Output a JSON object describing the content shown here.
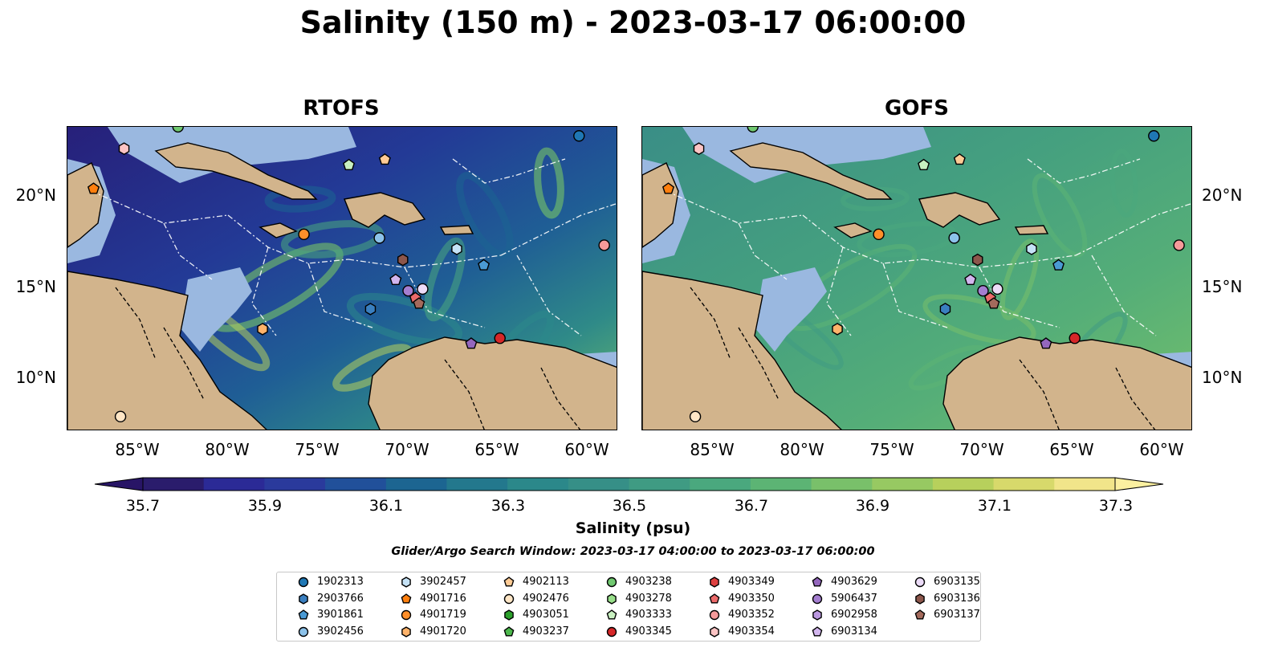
{
  "title": "Salinity (150 m) - 2023-03-17 06:00:00",
  "panels": [
    {
      "title": "RTOFS"
    },
    {
      "title": "GOFS"
    }
  ],
  "axes": {
    "lat_labels": [
      "20°N",
      "15°N",
      "10°N"
    ],
    "lon_labels": [
      "85°W",
      "80°W",
      "75°W",
      "70°W",
      "65°W",
      "60°W"
    ]
  },
  "colorbar": {
    "label": "Salinity (psu)",
    "ticks": [
      "35.7",
      "35.9",
      "36.1",
      "36.3",
      "36.5",
      "36.7",
      "36.9",
      "37.1",
      "37.3"
    ],
    "colors": [
      "#2a1c6c",
      "#2b2a96",
      "#2a3a9c",
      "#21509a",
      "#1c6591",
      "#23788d",
      "#2b888a",
      "#368f87",
      "#3f9b83",
      "#4aa87e",
      "#5cb474",
      "#79c06a",
      "#97c962",
      "#b7d05c",
      "#d7d96b",
      "#f1e58a"
    ]
  },
  "search_window": "Glider/Argo Search Window: 2023-03-17 04:00:00 to 2023-03-17 06:00:00",
  "legend": [
    {
      "id": "1902313",
      "marker": "circle",
      "color": "#1f77b4"
    },
    {
      "id": "2903766",
      "marker": "hexagon",
      "color": "#3a7fc0"
    },
    {
      "id": "3901861",
      "marker": "pentagon",
      "color": "#4a9ad4"
    },
    {
      "id": "3902456",
      "marker": "circle",
      "color": "#8cc2ea"
    },
    {
      "id": "3902457",
      "marker": "hexagon",
      "color": "#c5e2f6"
    },
    {
      "id": "4901716",
      "marker": "pentagon",
      "color": "#ff7f0e"
    },
    {
      "id": "4901719",
      "marker": "circle",
      "color": "#ff8f2a"
    },
    {
      "id": "4901720",
      "marker": "hexagon",
      "color": "#ffb36a"
    },
    {
      "id": "4902113",
      "marker": "pentagon",
      "color": "#ffcb95"
    },
    {
      "id": "4902476",
      "marker": "circle",
      "color": "#ffe6c6"
    },
    {
      "id": "4903051",
      "marker": "hexagon",
      "color": "#2ca02c"
    },
    {
      "id": "4903237",
      "marker": "pentagon",
      "color": "#4cb84c"
    },
    {
      "id": "4903238",
      "marker": "circle",
      "color": "#70c870"
    },
    {
      "id": "4903278",
      "marker": "hexagon",
      "color": "#98df8a"
    },
    {
      "id": "4903333",
      "marker": "pentagon",
      "color": "#c8f0c0"
    },
    {
      "id": "4903345",
      "marker": "circle",
      "color": "#d62728"
    },
    {
      "id": "4903349",
      "marker": "hexagon",
      "color": "#de4040"
    },
    {
      "id": "4903350",
      "marker": "pentagon",
      "color": "#ec6a6a"
    },
    {
      "id": "4903352",
      "marker": "circle",
      "color": "#f59a9a"
    },
    {
      "id": "4903354",
      "marker": "hexagon",
      "color": "#fcc4c4"
    },
    {
      "id": "4903629",
      "marker": "pentagon",
      "color": "#9467bd"
    },
    {
      "id": "5906437",
      "marker": "circle",
      "color": "#a47ed0"
    },
    {
      "id": "6902958",
      "marker": "hexagon",
      "color": "#bb98e0"
    },
    {
      "id": "6903134",
      "marker": "pentagon",
      "color": "#d2b6ee"
    },
    {
      "id": "6903135",
      "marker": "circle",
      "color": "#ecdcf8"
    },
    {
      "id": "6903136",
      "marker": "hexagon",
      "color": "#8c564b"
    },
    {
      "id": "6903137",
      "marker": "pentagon",
      "color": "#a46a5c"
    }
  ],
  "platform_positions": [
    {
      "id": "1902313",
      "lon": -60.3,
      "lat": 23.2
    },
    {
      "id": "4901716",
      "lon": -87.3,
      "lat": 20.3
    },
    {
      "id": "4901719",
      "lon": -75.6,
      "lat": 17.8
    },
    {
      "id": "4901720",
      "lon": -77.9,
      "lat": 12.6
    },
    {
      "id": "4902113",
      "lon": -71.1,
      "lat": 21.9
    },
    {
      "id": "4902476",
      "lon": -85.8,
      "lat": 7.8
    },
    {
      "id": "4903238",
      "lon": -82.6,
      "lat": 23.7
    },
    {
      "id": "4903333",
      "lon": -73.1,
      "lat": 21.6
    },
    {
      "id": "4903345",
      "lon": -64.7,
      "lat": 12.1
    },
    {
      "id": "4903350",
      "lon": -69.4,
      "lat": 14.3
    },
    {
      "id": "4903352",
      "lon": -58.9,
      "lat": 17.2
    },
    {
      "id": "4903354",
      "lon": -85.6,
      "lat": 22.5
    },
    {
      "id": "4903629",
      "lon": -66.3,
      "lat": 11.8
    },
    {
      "id": "6903134",
      "lon": -70.5,
      "lat": 15.3
    },
    {
      "id": "6903135",
      "lon": -69.0,
      "lat": 14.8
    },
    {
      "id": "6903136",
      "lon": -70.1,
      "lat": 16.4
    },
    {
      "id": "6903137",
      "lon": -69.2,
      "lat": 14.0
    },
    {
      "id": "3902457",
      "lon": -67.1,
      "lat": 17.0
    },
    {
      "id": "3902456",
      "lon": -71.4,
      "lat": 17.6
    },
    {
      "id": "3901861",
      "lon": -65.6,
      "lat": 16.1
    },
    {
      "id": "2903766",
      "lon": -71.9,
      "lat": 13.7
    },
    {
      "id": "5906437",
      "lon": -69.8,
      "lat": 14.7
    }
  ]
}
